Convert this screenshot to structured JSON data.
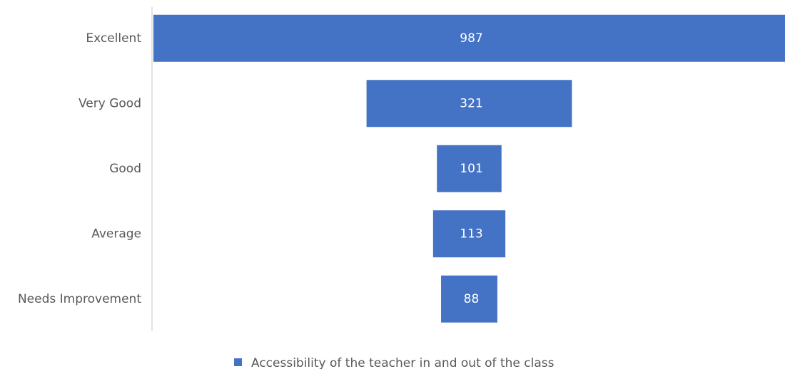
{
  "chart_data": {
    "type": "funnel",
    "categories": [
      "Excellent",
      "Very Good",
      "Good",
      "Average",
      "Needs Improvement"
    ],
    "series": [
      {
        "name": "Accessibility of the teacher in and out of the class",
        "color": "#4472c4",
        "values": [
          987,
          321,
          101,
          113,
          88
        ]
      }
    ]
  }
}
